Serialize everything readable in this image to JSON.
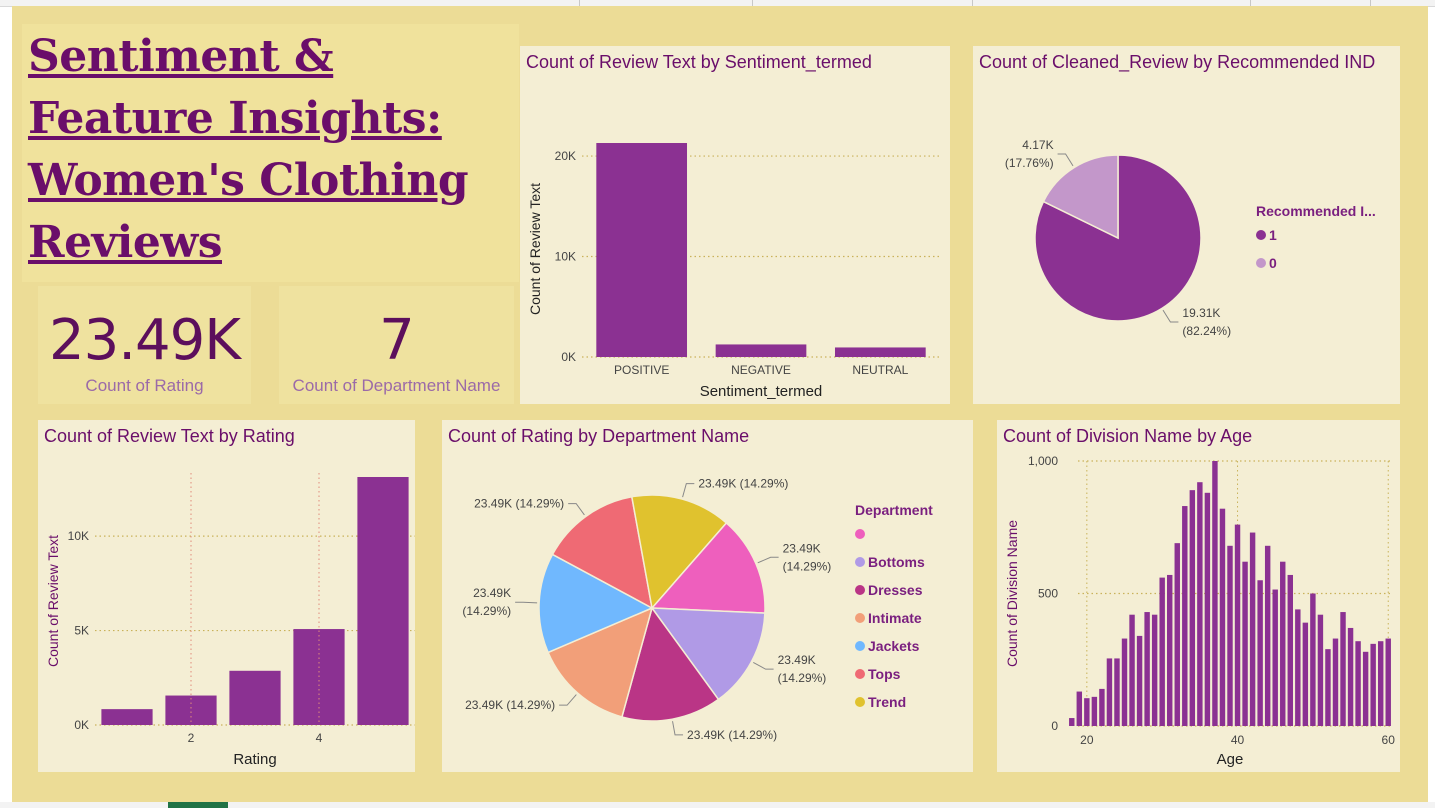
{
  "header": {
    "title_lines": [
      "Sentiment  & ",
      "Feature Insights: ",
      "Women's Clothing ",
      "Reviews"
    ]
  },
  "kpis": [
    {
      "value": "23.49K",
      "label": "Count of Rating"
    },
    {
      "value": "7",
      "label": "Count of Department Name"
    }
  ],
  "colors": {
    "bar": "#8b3192",
    "canvas": "#ecdc96",
    "panel": "#f4eed4",
    "title": "#6a0e6a",
    "pie_dept": [
      "#ee5fbd",
      "#b09ae6",
      "#ba3586",
      "#f29f79",
      "#70b8fe",
      "#ef6a74",
      "#e0c22e"
    ],
    "pie_rec": [
      "#8b3192",
      "#c397ca"
    ]
  },
  "chart_data": [
    {
      "id": "sentiment",
      "type": "bar",
      "title": "Count of Review Text by Sentiment_termed",
      "xlabel": "Sentiment_termed",
      "ylabel": "Count of Review Text",
      "categories": [
        "POSITIVE",
        "NEGATIVE",
        "NEUTRAL"
      ],
      "values": [
        21300,
        1250,
        950
      ],
      "ylim": [
        0,
        21500
      ],
      "yticks": [
        0,
        10000,
        20000
      ],
      "ytick_labels": [
        "0K",
        "10K",
        "20K"
      ],
      "grid": true
    },
    {
      "id": "recommended",
      "type": "pie",
      "title": "Count of Cleaned_Review by Recommended IND",
      "legend_title": "Recommended I...",
      "legend_position": "right",
      "categories": [
        "1",
        "0"
      ],
      "values": [
        19310,
        4170
      ],
      "data_labels": [
        [
          "19.31K",
          "(82.24%)"
        ],
        [
          "4.17K",
          "(17.76%)"
        ]
      ]
    },
    {
      "id": "rating",
      "type": "bar",
      "title": "Count of Review Text by Rating",
      "xlabel": "Rating",
      "ylabel": "Count of Review Text",
      "categories": [
        "1",
        "2",
        "3",
        "4",
        "5"
      ],
      "values": [
        840,
        1560,
        2870,
        5080,
        13130
      ],
      "ylim": [
        0,
        13130
      ],
      "yticks": [
        0,
        5000,
        10000
      ],
      "ytick_labels": [
        "0K",
        "5K",
        "10K"
      ],
      "xtick_labels": [
        "",
        "2",
        "",
        "4",
        ""
      ],
      "grid": true
    },
    {
      "id": "department",
      "type": "pie",
      "title": "Count of Rating by Department Name",
      "legend_title": "Department",
      "legend_position": "right",
      "categories": [
        "",
        "Bottoms",
        "Dresses",
        "Intimate",
        "Jackets",
        "Tops",
        "Trend"
      ],
      "values": [
        23490,
        23490,
        23490,
        23490,
        23490,
        23490,
        23490
      ],
      "data_labels": [
        [
          "23.49K",
          "(14.29%)"
        ],
        [
          "23.49K",
          "(14.29%)"
        ],
        [
          "23.49K (14.29%)"
        ],
        [
          "23.49K (14.29%)"
        ],
        [
          "23.49K",
          "(14.29%)"
        ],
        [
          "23.49K (14.29%)"
        ],
        [
          "23.49K (14.29%)"
        ]
      ]
    },
    {
      "id": "age",
      "type": "bar",
      "title": "Count of Division Name by Age",
      "xlabel": "Age",
      "ylabel": "Count of Division Name",
      "x": [
        18,
        19,
        20,
        21,
        22,
        23,
        24,
        25,
        26,
        27,
        28,
        29,
        30,
        31,
        32,
        33,
        34,
        35,
        36,
        37,
        38,
        39,
        40,
        41,
        42,
        43,
        44,
        45,
        46,
        47,
        48,
        49,
        50,
        51,
        52,
        53,
        54,
        55,
        56,
        57,
        58,
        59,
        60
      ],
      "values": [
        30,
        130,
        105,
        110,
        140,
        255,
        255,
        330,
        420,
        340,
        430,
        420,
        560,
        570,
        690,
        830,
        890,
        920,
        880,
        1000,
        820,
        680,
        760,
        620,
        730,
        550,
        680,
        515,
        620,
        570,
        440,
        390,
        500,
        420,
        290,
        330,
        430,
        370,
        320,
        280,
        310,
        320,
        330
      ],
      "ylim": [
        0,
        1000
      ],
      "yticks": [
        0,
        500,
        1000
      ],
      "ytick_labels": [
        "0",
        "500",
        "1,000"
      ],
      "xticks": [
        20,
        40,
        60
      ],
      "xtick_labels": [
        "20",
        "40",
        "60"
      ],
      "grid": true
    }
  ]
}
